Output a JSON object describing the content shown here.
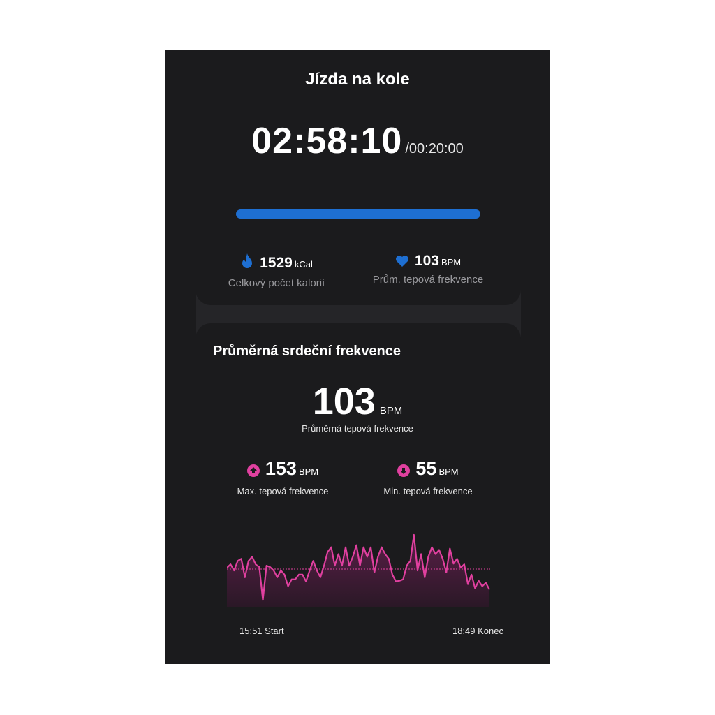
{
  "header": {
    "title": "Jízda na kole",
    "elapsed": "02:58:10",
    "goal": "/00:20:00",
    "progress_percent": 100
  },
  "summary": [
    {
      "icon": "flame-icon",
      "value": "1529",
      "unit": "kCal",
      "label": "Celkový počet kalorií"
    },
    {
      "icon": "heart-icon",
      "value": "103",
      "unit": "BPM",
      "label": "Prům. tepová frekvence"
    }
  ],
  "heart_rate": {
    "title": "Průměrná srdeční frekvence",
    "average": {
      "value": "103",
      "unit": "BPM",
      "label": "Průměrná tepová frekvence"
    },
    "max": {
      "icon": "arrow-up-circle-icon",
      "value": "153",
      "unit": "BPM",
      "label": "Max. tepová frekvence"
    },
    "min": {
      "icon": "arrow-down-circle-icon",
      "value": "55",
      "unit": "BPM",
      "label": "Min. tepová frekvence"
    },
    "start_label": "15:51 Start",
    "end_label": "18:49 Konec"
  },
  "colors": {
    "accent_blue": "#1e6fd2",
    "heart_pink": "#e0409f",
    "background": "#1b1b1d"
  },
  "chart_data": {
    "type": "area",
    "x_range": [
      "15:51",
      "18:49"
    ],
    "average_line": 103,
    "ylim": [
      50,
      155
    ],
    "grid": false,
    "values": [
      105,
      110,
      101,
      115,
      118,
      91,
      115,
      121,
      110,
      106,
      58,
      108,
      106,
      101,
      91,
      101,
      95,
      78,
      88,
      88,
      95,
      95,
      85,
      101,
      115,
      101,
      91,
      108,
      128,
      135,
      108,
      125,
      108,
      135,
      108,
      121,
      138,
      108,
      135,
      121,
      135,
      98,
      121,
      135,
      125,
      118,
      95,
      85,
      86,
      88,
      108,
      115,
      153,
      101,
      125,
      91,
      121,
      135,
      125,
      131,
      118,
      98,
      133,
      111,
      118,
      105,
      110,
      81,
      95,
      75,
      86,
      78,
      83,
      73
    ]
  }
}
